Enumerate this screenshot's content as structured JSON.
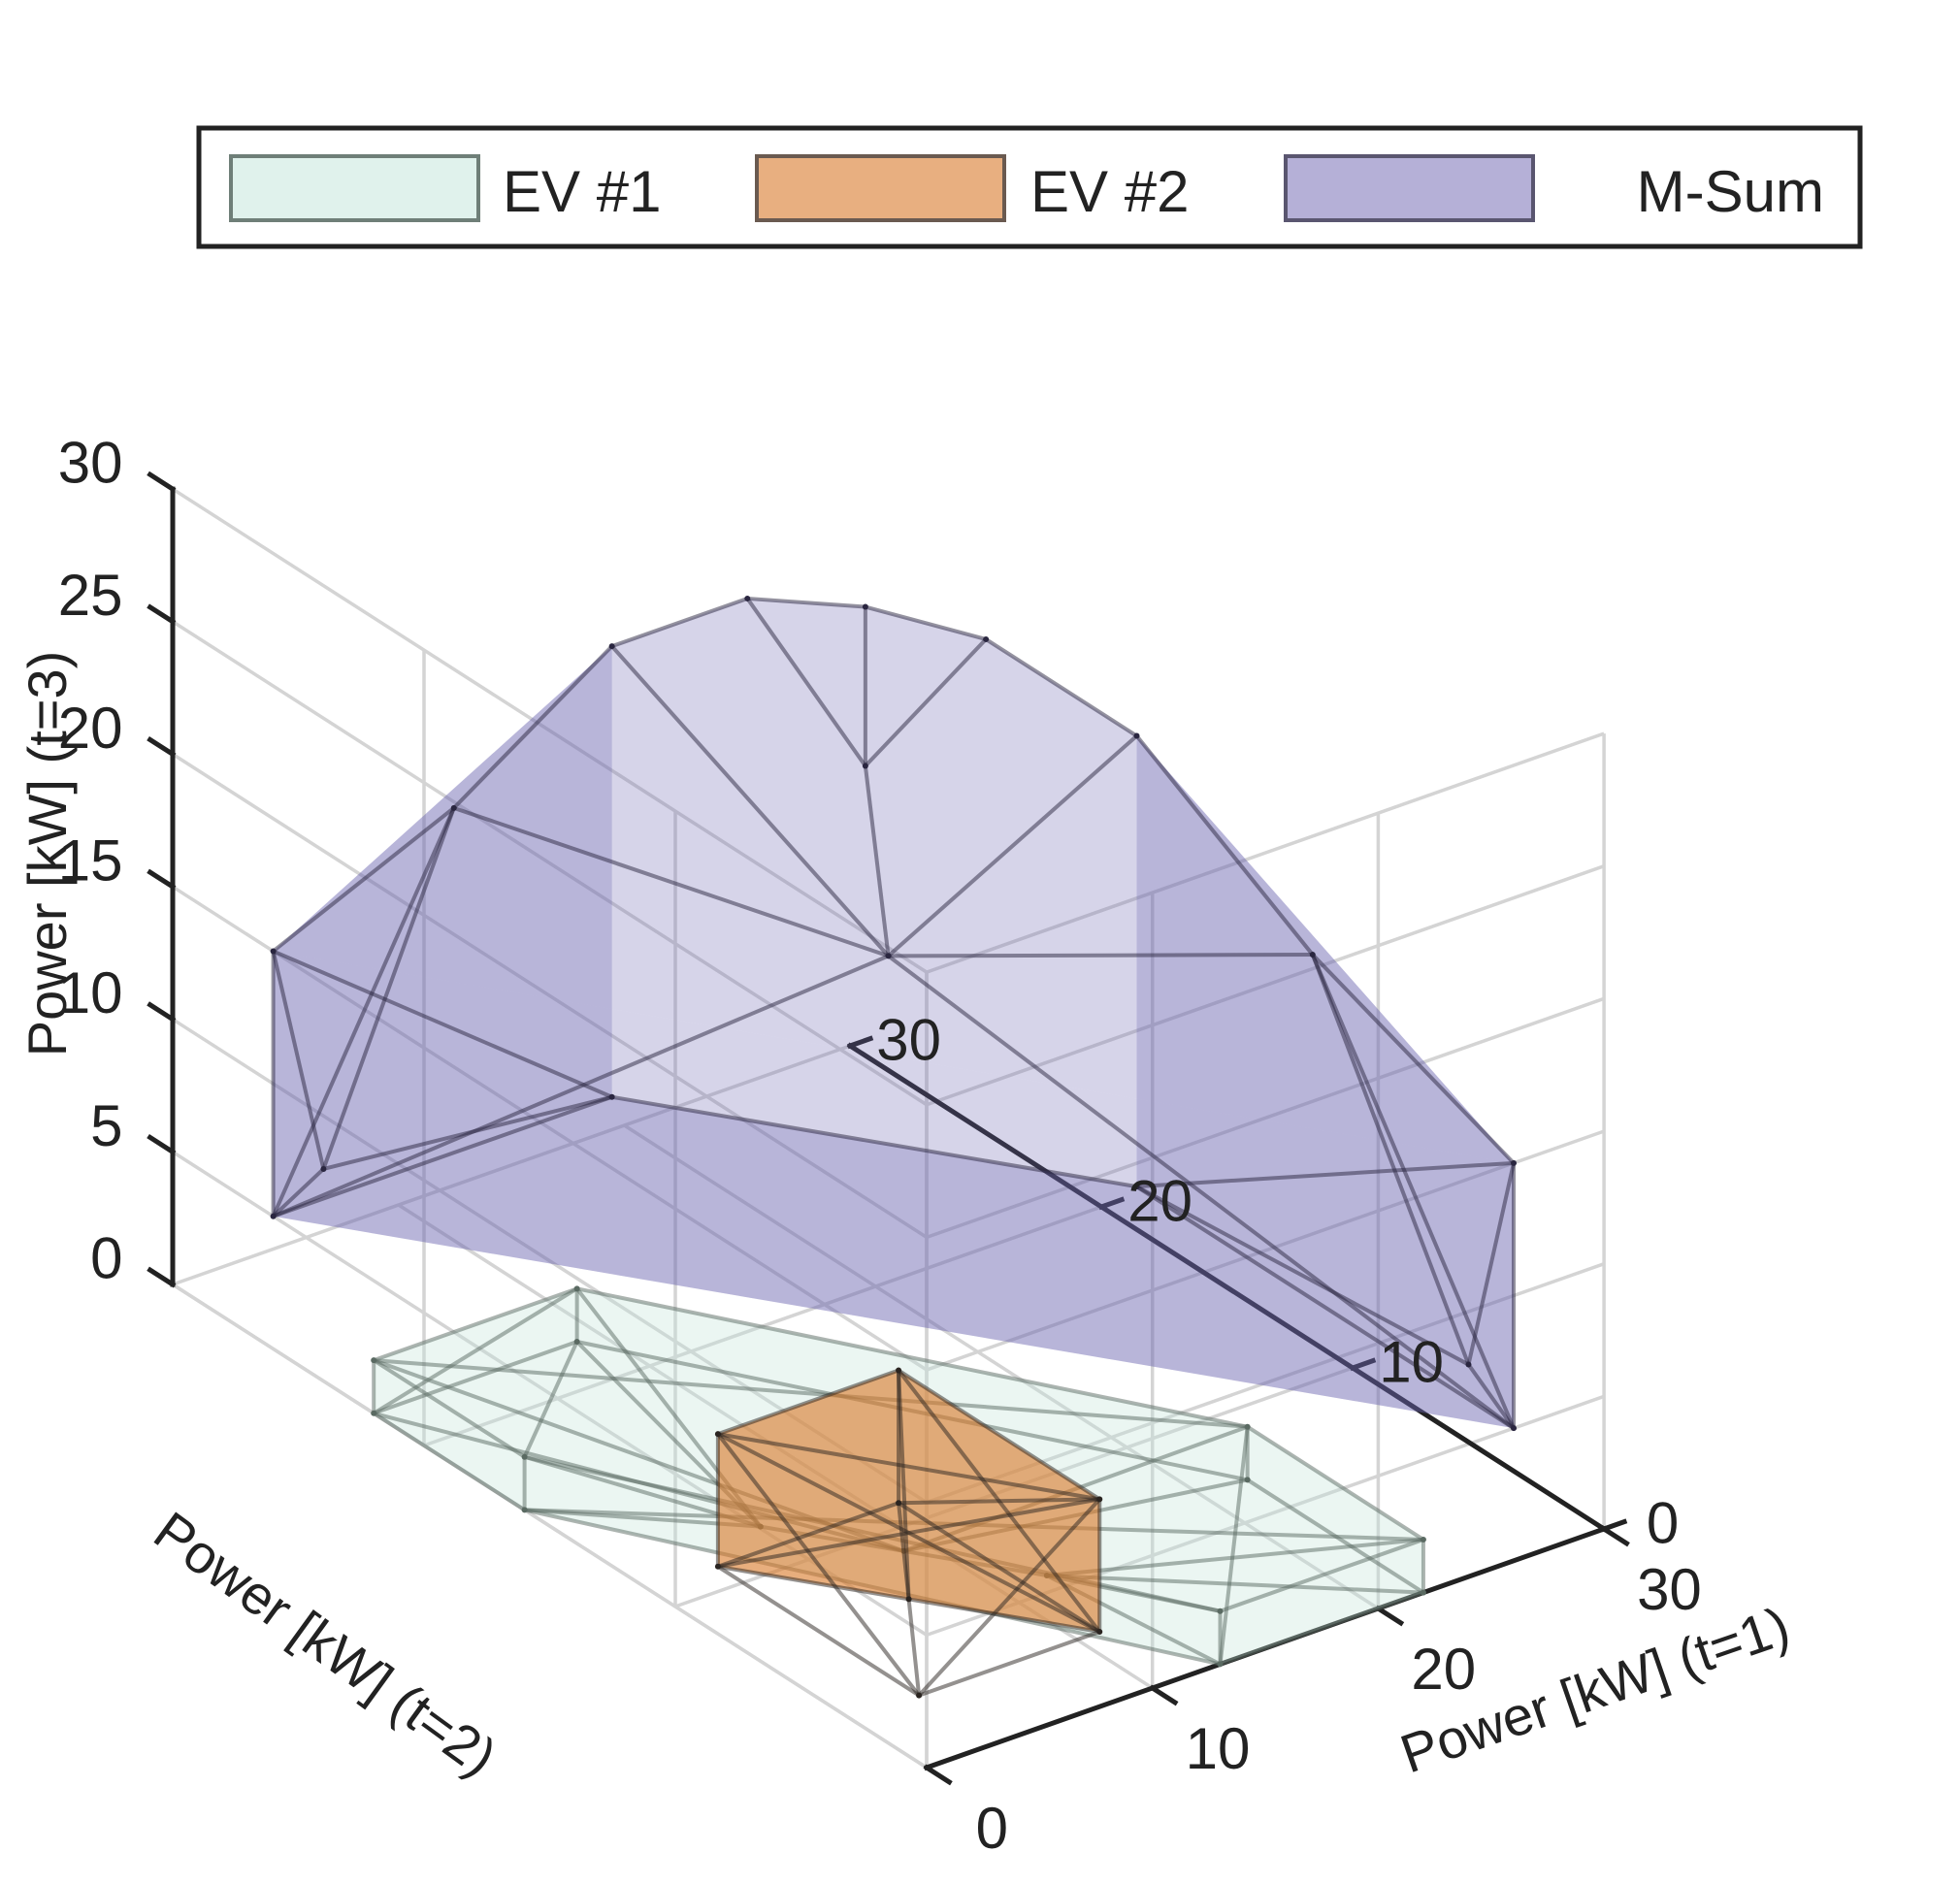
{
  "chart_data": {
    "type": "polyhedra-3d",
    "title": "",
    "axes": {
      "x": {
        "label": "Power [kW] (t=1)",
        "ticks": [
          0,
          10,
          20,
          30
        ],
        "lim": [
          0,
          30
        ]
      },
      "y": {
        "label": "Power [kW] (t=2)",
        "ticks": [
          0,
          10,
          20,
          30
        ],
        "lim": [
          0,
          30
        ]
      },
      "z": {
        "label": "Power [kW] (t=3)",
        "ticks": [
          0,
          5,
          10,
          15,
          20,
          25,
          30
        ],
        "lim": [
          0,
          30
        ]
      }
    },
    "grid": true,
    "legend": {
      "placement": "top",
      "orientation": "horizontal",
      "entries": [
        {
          "name": "EV #1",
          "color": "#c6e7dc"
        },
        {
          "name": "EV #2",
          "color": "#d97a2b"
        },
        {
          "name": "M-Sum",
          "color": "#6b62b0"
        }
      ]
    },
    "series": [
      {
        "name": "EV #1",
        "color": "#c6e7dc",
        "edge_color": "#5a6a62",
        "vertices": [
          [
            0,
            22,
            0
          ],
          [
            0,
            16,
            0
          ],
          [
            13,
            0,
            0
          ],
          [
            22,
            0,
            0
          ],
          [
            22,
            7,
            0
          ],
          [
            9,
            22,
            0
          ],
          [
            0,
            22,
            2
          ],
          [
            0,
            16,
            2
          ],
          [
            13,
            0,
            2
          ],
          [
            22,
            0,
            2
          ],
          [
            22,
            7,
            2
          ],
          [
            9,
            22,
            2
          ],
          [
            9,
            9,
            0
          ],
          [
            6,
            12,
            0
          ],
          [
            12,
            6,
            0
          ]
        ],
        "faces": [
          [
            0,
            1,
            2,
            3,
            4,
            5
          ],
          [
            6,
            7,
            8,
            9,
            10,
            11
          ],
          [
            0,
            6,
            7,
            1
          ],
          [
            1,
            7,
            8,
            2
          ],
          [
            2,
            8,
            9,
            3
          ],
          [
            3,
            9,
            10,
            4
          ],
          [
            4,
            10,
            11,
            5
          ],
          [
            5,
            11,
            6,
            0
          ]
        ],
        "edges": [
          [
            0,
            1
          ],
          [
            1,
            2
          ],
          [
            2,
            3
          ],
          [
            3,
            4
          ],
          [
            4,
            5
          ],
          [
            5,
            0
          ],
          [
            6,
            7
          ],
          [
            7,
            8
          ],
          [
            8,
            9
          ],
          [
            9,
            10
          ],
          [
            10,
            11
          ],
          [
            11,
            6
          ],
          [
            0,
            6
          ],
          [
            1,
            7
          ],
          [
            2,
            8
          ],
          [
            3,
            9
          ],
          [
            4,
            10
          ],
          [
            5,
            11
          ],
          [
            12,
            0
          ],
          [
            12,
            4
          ],
          [
            12,
            6
          ],
          [
            12,
            10
          ],
          [
            13,
            1
          ],
          [
            13,
            5
          ],
          [
            13,
            7
          ],
          [
            13,
            11
          ],
          [
            14,
            2
          ],
          [
            14,
            3
          ],
          [
            14,
            8
          ],
          [
            14,
            9
          ],
          [
            1,
            9
          ],
          [
            2,
            10
          ],
          [
            5,
            7
          ],
          [
            0,
            11
          ],
          [
            12,
            13
          ],
          [
            12,
            14
          ],
          [
            6,
            10
          ]
        ]
      },
      {
        "name": "EV #2",
        "color": "#d97a2b",
        "edge_color": "#2a2420",
        "vertices": [
          [
            3,
            11,
            0
          ],
          [
            11,
            3,
            0
          ],
          [
            11,
            11,
            0
          ],
          [
            3,
            11,
            5
          ],
          [
            11,
            3,
            5
          ],
          [
            11,
            11,
            5
          ],
          [
            3,
            3,
            0
          ],
          [
            7,
            7,
            0
          ]
        ],
        "faces": [
          [
            0,
            1,
            2
          ],
          [
            3,
            4,
            5
          ],
          [
            0,
            3,
            4,
            1
          ],
          [
            1,
            4,
            5,
            2
          ],
          [
            2,
            5,
            3,
            0
          ]
        ],
        "edges": [
          [
            0,
            1
          ],
          [
            1,
            2
          ],
          [
            2,
            0
          ],
          [
            3,
            4
          ],
          [
            4,
            5
          ],
          [
            5,
            3
          ],
          [
            0,
            3
          ],
          [
            1,
            4
          ],
          [
            2,
            5
          ],
          [
            0,
            4
          ],
          [
            1,
            3
          ],
          [
            1,
            5
          ],
          [
            2,
            4
          ],
          [
            6,
            0
          ],
          [
            6,
            1
          ],
          [
            6,
            3
          ],
          [
            6,
            4
          ],
          [
            7,
            2
          ],
          [
            7,
            5
          ],
          [
            7,
            6
          ]
        ]
      },
      {
        "name": "M-Sum",
        "color": "#6b62b0",
        "edge_color": "#2a2640",
        "vertices": [
          [
            0,
            26,
            5
          ],
          [
            0,
            26,
            15
          ],
          [
            26,
            0,
            5
          ],
          [
            26,
            0,
            15
          ],
          [
            15,
            26,
            5
          ],
          [
            26,
            15,
            5
          ],
          [
            15,
            26,
            22
          ],
          [
            26,
            15,
            22
          ],
          [
            24,
            24,
            22
          ],
          [
            26,
            21,
            22
          ],
          [
            21,
            26,
            22
          ],
          [
            0,
            24,
            8
          ],
          [
            24,
            0,
            8
          ],
          [
            15,
            15,
            17
          ],
          [
            8,
            26,
            18
          ],
          [
            26,
            8,
            18
          ],
          [
            24,
            24,
            16
          ]
        ],
        "faces": [
          [
            0,
            1,
            3,
            2
          ],
          [
            0,
            1,
            6,
            4
          ],
          [
            2,
            3,
            7,
            5
          ],
          [
            1,
            3,
            7,
            9,
            8,
            10,
            6
          ],
          [
            0,
            2,
            5,
            4
          ]
        ],
        "edges": [
          [
            0,
            1
          ],
          [
            2,
            3
          ],
          [
            1,
            14
          ],
          [
            14,
            6
          ],
          [
            6,
            10
          ],
          [
            10,
            8
          ],
          [
            8,
            9
          ],
          [
            9,
            7
          ],
          [
            7,
            15
          ],
          [
            15,
            3
          ],
          [
            0,
            11
          ],
          [
            11,
            4
          ],
          [
            0,
            4
          ],
          [
            2,
            12
          ],
          [
            12,
            5
          ],
          [
            2,
            5
          ],
          [
            4,
            5
          ],
          [
            13,
            0
          ],
          [
            13,
            2
          ],
          [
            13,
            14
          ],
          [
            13,
            15
          ],
          [
            13,
            16
          ],
          [
            16,
            10
          ],
          [
            16,
            9
          ],
          [
            16,
            8
          ],
          [
            1,
            11
          ],
          [
            1,
            4
          ],
          [
            3,
            12
          ],
          [
            3,
            5
          ],
          [
            14,
            0
          ],
          [
            15,
            2
          ],
          [
            6,
            13
          ],
          [
            7,
            13
          ],
          [
            14,
            11
          ],
          [
            15,
            12
          ]
        ]
      }
    ]
  }
}
